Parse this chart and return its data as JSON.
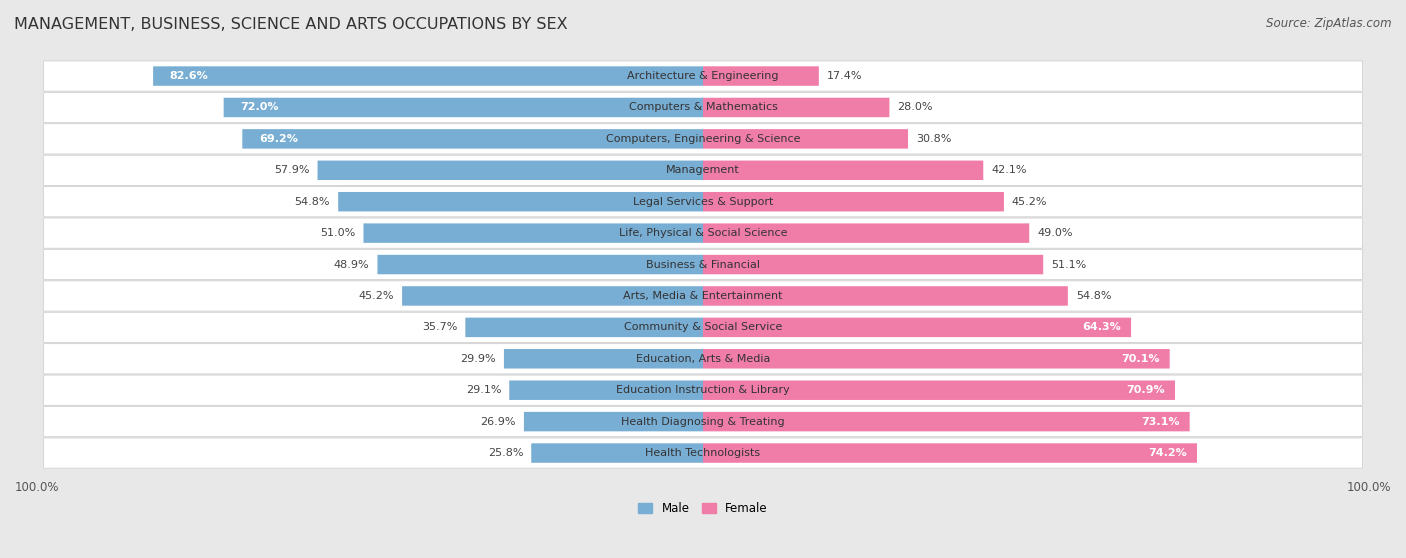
{
  "title": "MANAGEMENT, BUSINESS, SCIENCE AND ARTS OCCUPATIONS BY SEX",
  "source": "Source: ZipAtlas.com",
  "categories": [
    "Architecture & Engineering",
    "Computers & Mathematics",
    "Computers, Engineering & Science",
    "Management",
    "Legal Services & Support",
    "Life, Physical & Social Science",
    "Business & Financial",
    "Arts, Media & Entertainment",
    "Community & Social Service",
    "Education, Arts & Media",
    "Education Instruction & Library",
    "Health Diagnosing & Treating",
    "Health Technologists"
  ],
  "male_pct": [
    82.6,
    72.0,
    69.2,
    57.9,
    54.8,
    51.0,
    48.9,
    45.2,
    35.7,
    29.9,
    29.1,
    26.9,
    25.8
  ],
  "female_pct": [
    17.4,
    28.0,
    30.8,
    42.1,
    45.2,
    49.0,
    51.1,
    54.8,
    64.3,
    70.1,
    70.9,
    73.1,
    74.2
  ],
  "male_color": "#79aed4",
  "female_color": "#f07ca8",
  "bg_color": "#e8e8e8",
  "bar_bg_color": "#ffffff",
  "row_bg_color": "#f5f5f5",
  "title_fontsize": 11.5,
  "label_fontsize": 8.0,
  "pct_fontsize": 8.0,
  "tick_fontsize": 8.5,
  "source_fontsize": 8.5,
  "male_inside_threshold": 69.2,
  "female_inside_threshold": 64.3
}
